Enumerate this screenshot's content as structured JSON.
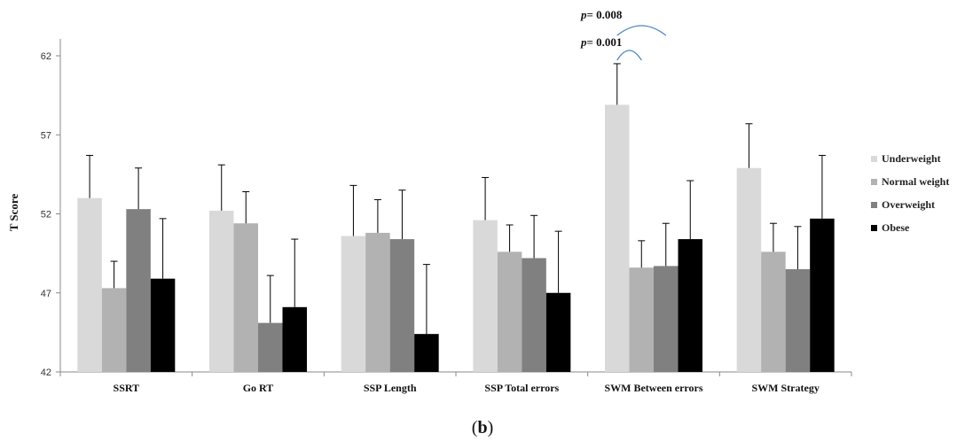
{
  "chart_data": {
    "type": "bar",
    "title": "",
    "xlabel": "",
    "ylabel": "T Score",
    "ylim": [
      42,
      63
    ],
    "yticks": [
      42,
      47,
      52,
      57,
      62
    ],
    "grid": false,
    "legend_position": "right",
    "categories": [
      "SSRT",
      "Go RT",
      "SSP Length",
      "SSP Total errors",
      "SWM Between errors",
      "SWM Strategy"
    ],
    "series": [
      {
        "name": "Underweight",
        "color": "#d9d9d9",
        "values": [
          53.0,
          52.2,
          50.6,
          51.6,
          58.9,
          54.9
        ],
        "errors": [
          2.7,
          2.9,
          3.2,
          2.7,
          2.6,
          2.8
        ]
      },
      {
        "name": "Normal weight",
        "color": "#b2b2b2",
        "values": [
          47.3,
          51.4,
          50.8,
          49.6,
          48.6,
          49.6
        ],
        "errors": [
          1.7,
          2.0,
          2.1,
          1.7,
          1.7,
          1.8
        ]
      },
      {
        "name": "Overweight",
        "color": "#808080",
        "values": [
          52.3,
          45.1,
          50.4,
          49.2,
          48.7,
          48.5
        ],
        "errors": [
          2.6,
          3.0,
          3.1,
          2.7,
          2.7,
          2.7
        ]
      },
      {
        "name": "Obese",
        "color": "#000000",
        "values": [
          47.9,
          46.1,
          44.4,
          47.0,
          50.4,
          51.7
        ],
        "errors": [
          3.8,
          4.3,
          4.4,
          3.9,
          3.7,
          4.0
        ]
      }
    ],
    "annotations": [
      {
        "p_symbol": "p",
        "text": "= 0.001",
        "category": "SWM Between errors",
        "from_series": 0,
        "to_series": 1
      },
      {
        "p_symbol": "p",
        "text": "= 0.008",
        "category": "SWM Between errors",
        "from_series": 0,
        "to_series": 2
      }
    ]
  },
  "caption": {
    "open": "(",
    "letter": "b",
    "close": ")"
  }
}
